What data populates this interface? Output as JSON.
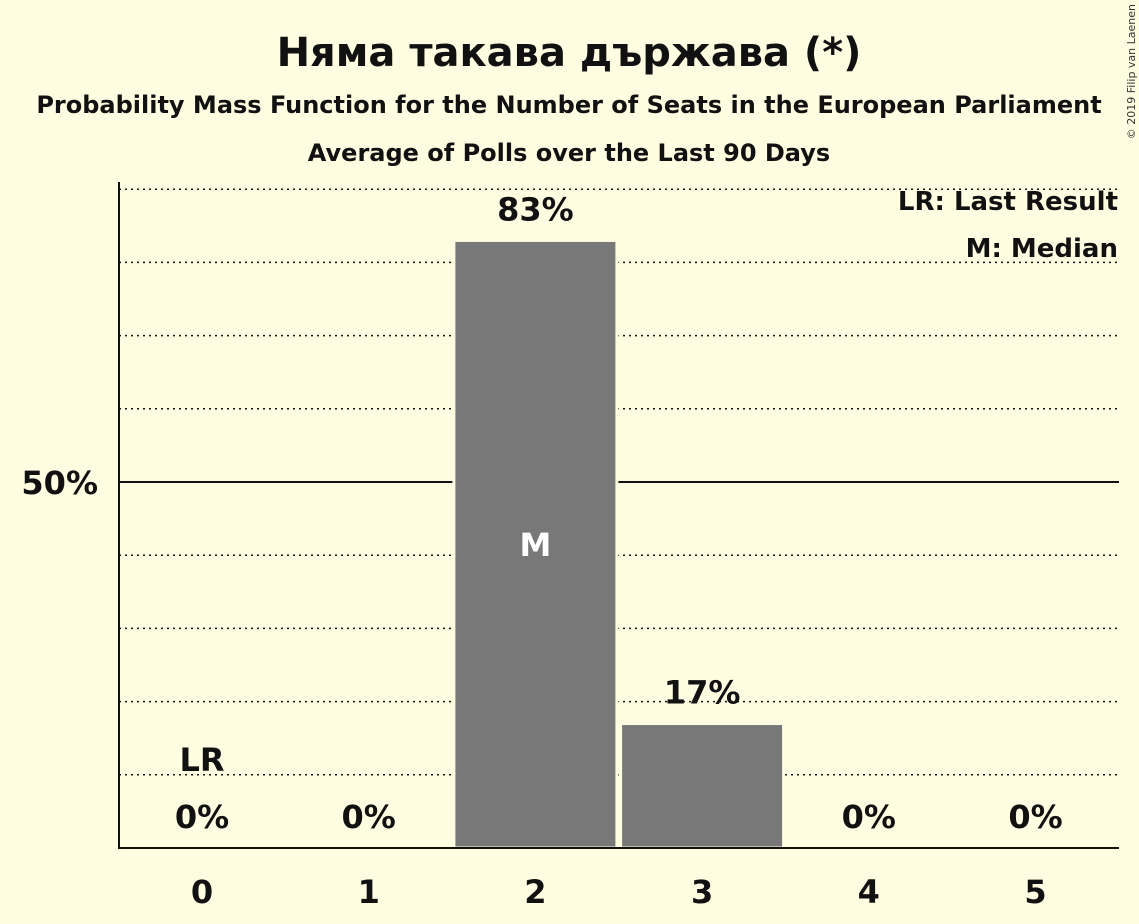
{
  "chart_data": {
    "type": "bar",
    "title": "Няма такава държава (*)",
    "subtitle": "Probability Mass Function for the Number of Seats in the European Parliament",
    "subtitle2": "Average of Polls over the Last 90 Days",
    "categories": [
      "0",
      "1",
      "2",
      "3",
      "4",
      "5"
    ],
    "values": [
      0,
      0,
      83,
      17,
      0,
      0
    ],
    "value_labels": [
      "0%",
      "0%",
      "83%",
      "17%",
      "0%",
      "0%"
    ],
    "ylim": [
      0,
      90
    ],
    "y_ticks": [
      {
        "value": 50,
        "label": "50%"
      }
    ],
    "grid": true,
    "grid_step": 10,
    "median_index": 2,
    "median_label": "M",
    "last_result_index": 0,
    "last_result_label": "LR",
    "legend": {
      "position": "top-right",
      "entries": [
        "LR: Last Result",
        "M: Median"
      ]
    },
    "colors": {
      "background": "#fffde1",
      "bar": "#787878",
      "text": "#111111",
      "median_text": "#ffffff"
    }
  },
  "copyright": "© 2019 Filip van Laenen"
}
